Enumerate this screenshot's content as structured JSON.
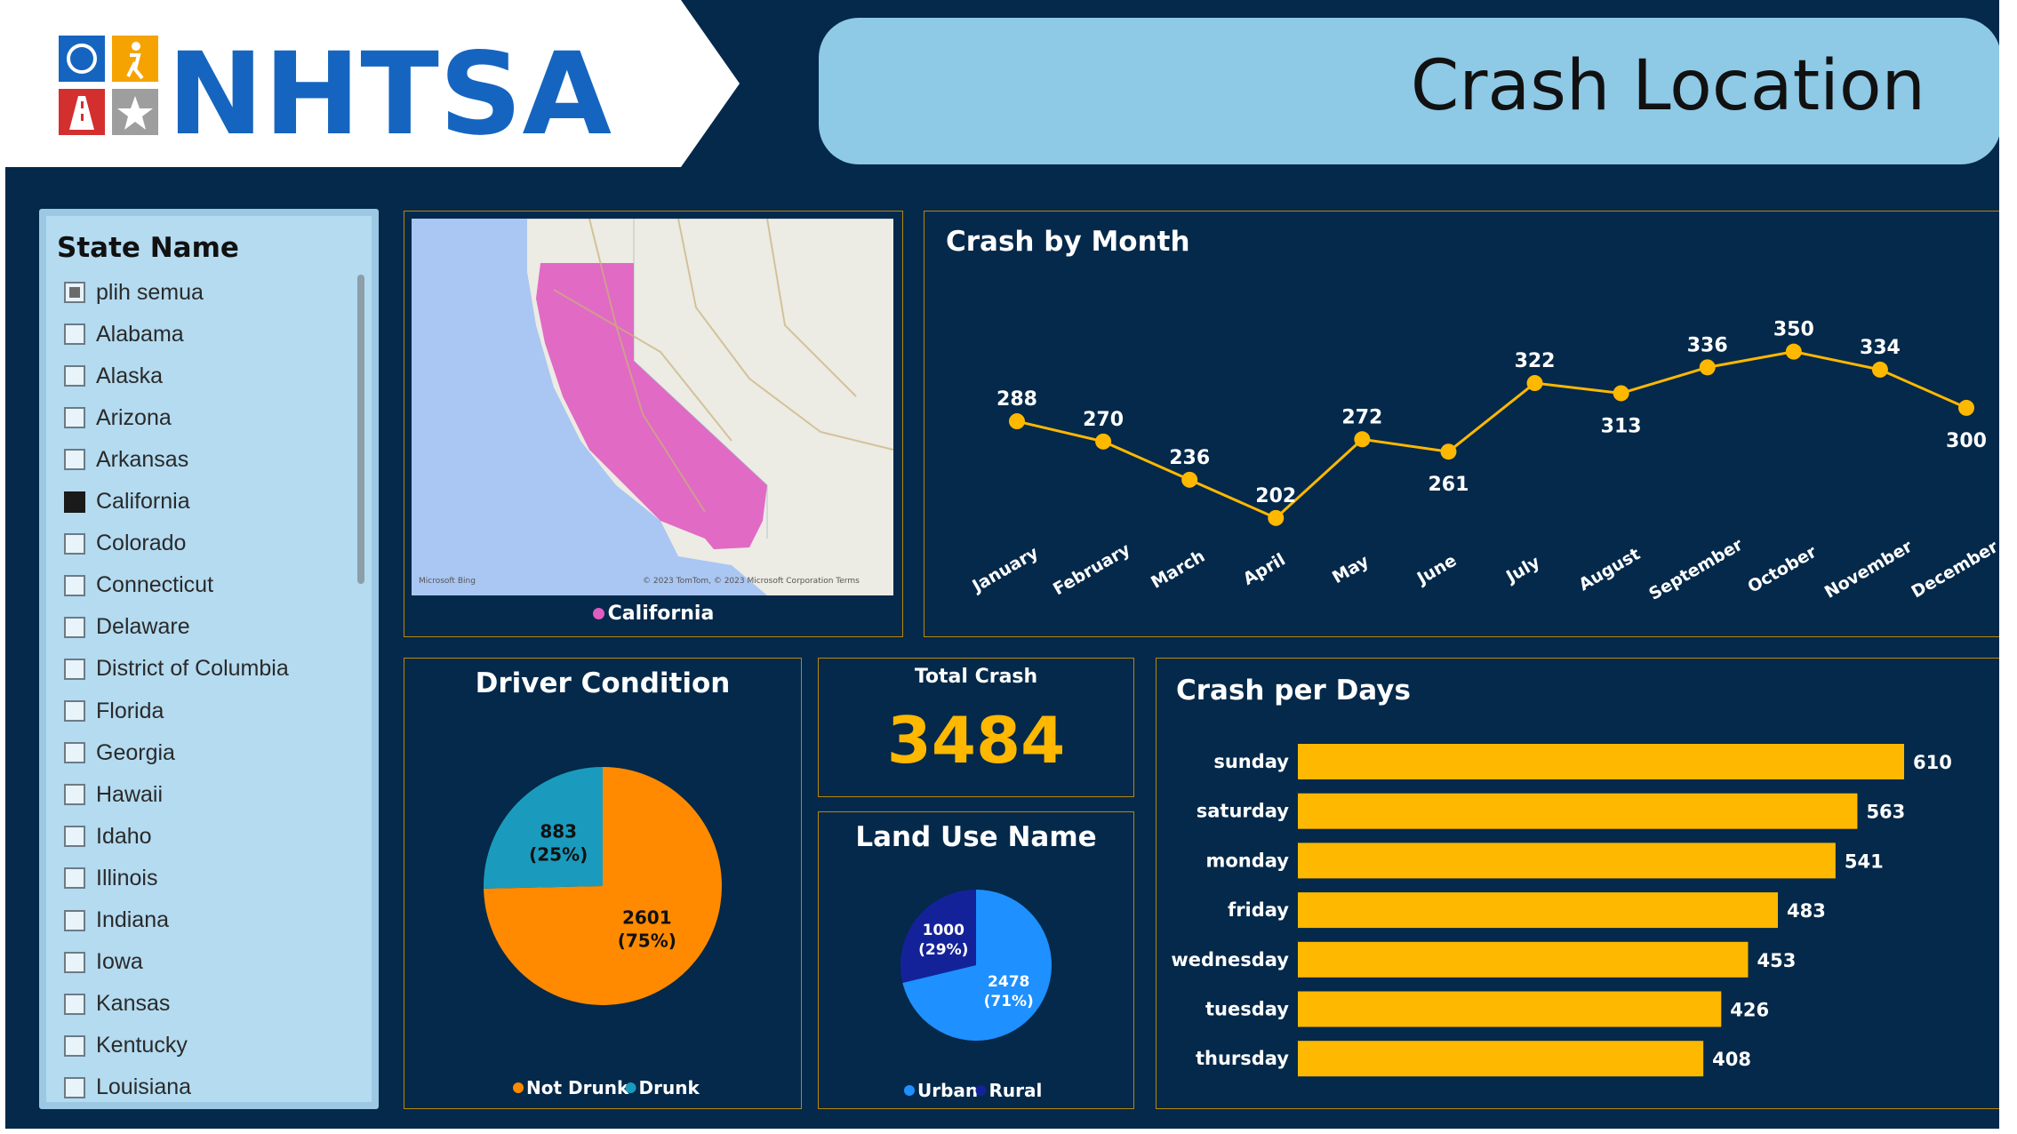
{
  "logo": {
    "text": "NHTSA"
  },
  "header": {
    "title": "Crash Location"
  },
  "slicer": {
    "title": "State Name",
    "items": [
      {
        "label": "plih semua",
        "state": "partial"
      },
      {
        "label": "Alabama",
        "state": "unchecked"
      },
      {
        "label": "Alaska",
        "state": "unchecked"
      },
      {
        "label": "Arizona",
        "state": "unchecked"
      },
      {
        "label": "Arkansas",
        "state": "unchecked"
      },
      {
        "label": "California",
        "state": "checked"
      },
      {
        "label": "Colorado",
        "state": "unchecked"
      },
      {
        "label": "Connecticut",
        "state": "unchecked"
      },
      {
        "label": "Delaware",
        "state": "unchecked"
      },
      {
        "label": "District of Columbia",
        "state": "unchecked"
      },
      {
        "label": "Florida",
        "state": "unchecked"
      },
      {
        "label": "Georgia",
        "state": "unchecked"
      },
      {
        "label": "Hawaii",
        "state": "unchecked"
      },
      {
        "label": "Idaho",
        "state": "unchecked"
      },
      {
        "label": "Illinois",
        "state": "unchecked"
      },
      {
        "label": "Indiana",
        "state": "unchecked"
      },
      {
        "label": "Iowa",
        "state": "unchecked"
      },
      {
        "label": "Kansas",
        "state": "unchecked"
      },
      {
        "label": "Kentucky",
        "state": "unchecked"
      },
      {
        "label": "Louisiana",
        "state": "unchecked"
      }
    ]
  },
  "map": {
    "legend_label": "California",
    "legend_color": "#e05cc0",
    "attribution_left": "Microsoft Bing",
    "attribution_right": "© 2023 TomTom, © 2023 Microsoft Corporation  Terms"
  },
  "kpi": {
    "label": "Total Crash",
    "value": "3484",
    "color": "#ffb800"
  },
  "colors": {
    "bar": "#ffb800",
    "line": "#ffb800",
    "not_drunk": "#ff8a00",
    "drunk": "#1a9bbd",
    "urban": "#1e90ff",
    "rural": "#14229a",
    "panel_border": "#b8860b",
    "background": "#04294a"
  },
  "chart_data": [
    {
      "id": "crash-by-month",
      "type": "line",
      "title": "Crash by Month",
      "categories": [
        "January",
        "February",
        "March",
        "April",
        "May",
        "June",
        "July",
        "August",
        "September",
        "October",
        "November",
        "December"
      ],
      "values": [
        288,
        270,
        236,
        202,
        272,
        261,
        322,
        313,
        336,
        350,
        334,
        300
      ],
      "ylim": [
        190,
        360
      ]
    },
    {
      "id": "driver-condition",
      "type": "pie",
      "title": "Driver Condition",
      "labels": [
        "Not Drunk",
        "Drunk"
      ],
      "values": [
        2601,
        883
      ],
      "slice_labels": [
        "2601\n(75%)",
        "883\n(25%)"
      ],
      "legend": "bottom"
    },
    {
      "id": "land-use",
      "type": "pie",
      "title": "Land Use Name",
      "labels": [
        "Urban",
        "Rural"
      ],
      "values": [
        2478,
        1000
      ],
      "slice_labels": [
        "2478\n(71%)",
        "1000\n(29%)"
      ],
      "legend": "bottom"
    },
    {
      "id": "crash-per-days",
      "type": "bar",
      "orientation": "horizontal",
      "title": "Crash per Days",
      "categories": [
        "sunday",
        "saturday",
        "monday",
        "friday",
        "wednesday",
        "tuesday",
        "thursday"
      ],
      "values": [
        610,
        563,
        541,
        483,
        453,
        426,
        408
      ]
    }
  ]
}
